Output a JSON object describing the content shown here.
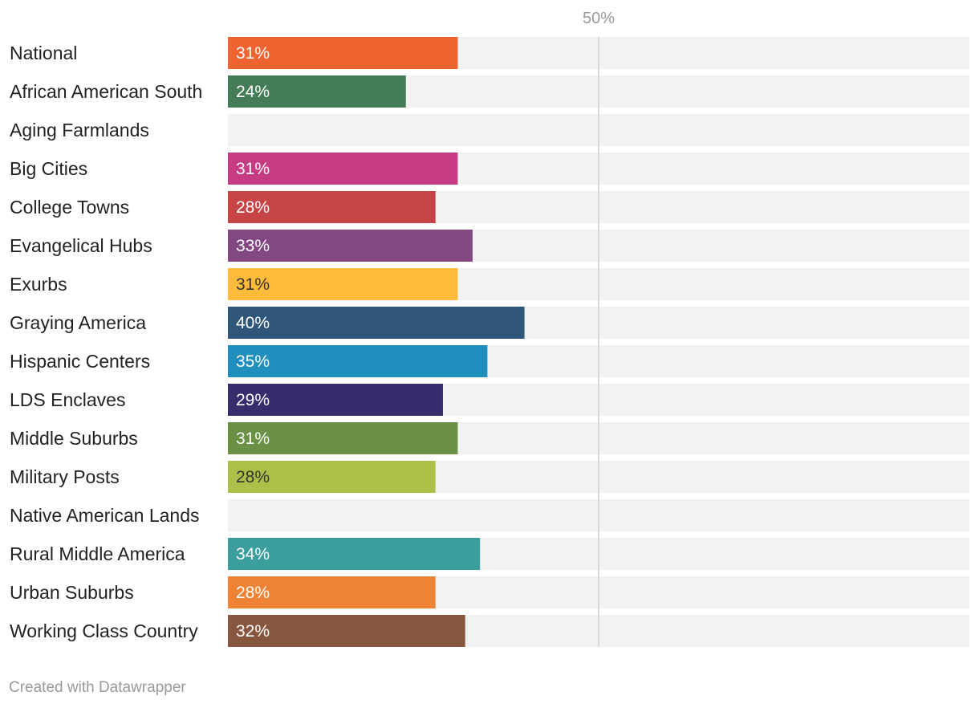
{
  "chart_data": {
    "type": "bar",
    "orientation": "horizontal",
    "title": "",
    "xlabel": "",
    "ylabel": "",
    "xlim": [
      0,
      100
    ],
    "grid": false,
    "value_suffix": "%",
    "reference_line": {
      "value": 50,
      "label": "50%"
    },
    "background_track_color": "#f2f2f2",
    "categories": [
      "National",
      "African American South",
      "Aging Farmlands",
      "Big Cities",
      "College Towns",
      "Evangelical Hubs",
      "Exurbs",
      "Graying America",
      "Hispanic Centers",
      "LDS Enclaves",
      "Middle Suburbs",
      "Military Posts",
      "Native American Lands",
      "Rural Middle America",
      "Urban Suburbs",
      "Working Class Country"
    ],
    "values": [
      31,
      24,
      null,
      31,
      28,
      33,
      31,
      40,
      35,
      29,
      31,
      28,
      null,
      34,
      28,
      32
    ],
    "labels": [
      "31%",
      "24%",
      "",
      "31%",
      "28%",
      "33%",
      "31%",
      "40%",
      "35%",
      "29%",
      "31%",
      "28%",
      "",
      "34%",
      "28%",
      "32%"
    ],
    "colors": [
      "#ef6331",
      "#437c57",
      "#cccccc",
      "#c63c83",
      "#c64446",
      "#814881",
      "#feba3b",
      "#2f5678",
      "#218fbd",
      "#392c6d",
      "#6a9046",
      "#acbf48",
      "#cccccc",
      "#3b9e9c",
      "#ef8335",
      "#86573e"
    ],
    "label_colors": [
      "#ffffff",
      "#ffffff",
      "#ffffff",
      "#ffffff",
      "#ffffff",
      "#ffffff",
      "#333333",
      "#ffffff",
      "#ffffff",
      "#ffffff",
      "#ffffff",
      "#333333",
      "#ffffff",
      "#ffffff",
      "#ffffff",
      "#ffffff"
    ]
  },
  "footer": {
    "credit": "Created with Datawrapper"
  }
}
